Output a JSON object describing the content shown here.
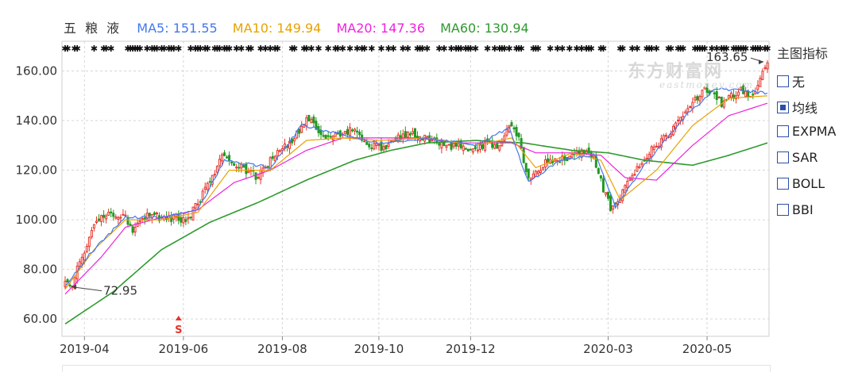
{
  "stock": {
    "name": "五 粮 液"
  },
  "ma_legend": [
    {
      "label": "MA5: 151.55",
      "color": "#4477ee"
    },
    {
      "label": "MA10: 149.94",
      "color": "#e8a200"
    },
    {
      "label": "MA20: 147.36",
      "color": "#ee22dd"
    },
    {
      "label": "MA60: 130.94",
      "color": "#2e9a2e"
    }
  ],
  "side_panel": {
    "title": "主图指标",
    "options": [
      {
        "label": "无",
        "checked": false
      },
      {
        "label": "均线",
        "checked": true
      },
      {
        "label": "EXPMA",
        "checked": false
      },
      {
        "label": "SAR",
        "checked": false
      },
      {
        "label": "BOLL",
        "checked": false
      },
      {
        "label": "BBI",
        "checked": false
      }
    ]
  },
  "watermark": {
    "cn": "东方财富网",
    "en": "eastmoney.com"
  },
  "chart_data": {
    "type": "candlestick",
    "y_ticks": [
      "160.00",
      "140.00",
      "120.00",
      "100.00",
      "80.00",
      "60.00"
    ],
    "ylim": [
      53,
      172
    ],
    "x_ticks": [
      {
        "label": "2019-04",
        "i": 8
      },
      {
        "label": "2019-06",
        "i": 49
      },
      {
        "label": "2019-08",
        "i": 90
      },
      {
        "label": "2019-10",
        "i": 130
      },
      {
        "label": "2019-12",
        "i": 168
      },
      {
        "label": "2020-03",
        "i": 225
      },
      {
        "label": "2020-05",
        "i": 266
      }
    ],
    "n_candles": 292,
    "annotations": [
      {
        "label": "163.65",
        "i": 290,
        "value": 163.65,
        "side": "left"
      },
      {
        "label": "72.95",
        "i": 2,
        "value": 72.95,
        "side": "right"
      }
    ],
    "close_anchors": [
      [
        0,
        74
      ],
      [
        3,
        72
      ],
      [
        5,
        80
      ],
      [
        8,
        85
      ],
      [
        11,
        95
      ],
      [
        14,
        100
      ],
      [
        17,
        103
      ],
      [
        20,
        101
      ],
      [
        25,
        102
      ],
      [
        28,
        94
      ],
      [
        31,
        100
      ],
      [
        35,
        103
      ],
      [
        40,
        100
      ],
      [
        45,
        101
      ],
      [
        50,
        99
      ],
      [
        55,
        107
      ],
      [
        60,
        115
      ],
      [
        65,
        125
      ],
      [
        70,
        122
      ],
      [
        75,
        120
      ],
      [
        80,
        117
      ],
      [
        85,
        124
      ],
      [
        90,
        128
      ],
      [
        95,
        133
      ],
      [
        100,
        141
      ],
      [
        105,
        136
      ],
      [
        110,
        132
      ],
      [
        115,
        136
      ],
      [
        120,
        136
      ],
      [
        125,
        131
      ],
      [
        130,
        129
      ],
      [
        135,
        131
      ],
      [
        140,
        134
      ],
      [
        145,
        134
      ],
      [
        150,
        133
      ],
      [
        155,
        131
      ],
      [
        160,
        130
      ],
      [
        165,
        129
      ],
      [
        170,
        129
      ],
      [
        175,
        131
      ],
      [
        180,
        130
      ],
      [
        184,
        139
      ],
      [
        188,
        133
      ],
      [
        192,
        116
      ],
      [
        196,
        120
      ],
      [
        200,
        124
      ],
      [
        205,
        124
      ],
      [
        210,
        126
      ],
      [
        215,
        128
      ],
      [
        219,
        126
      ],
      [
        223,
        112
      ],
      [
        226,
        105
      ],
      [
        230,
        110
      ],
      [
        235,
        118
      ],
      [
        240,
        125
      ],
      [
        245,
        130
      ],
      [
        250,
        135
      ],
      [
        255,
        140
      ],
      [
        260,
        147
      ],
      [
        265,
        152
      ],
      [
        268,
        151
      ],
      [
        272,
        147
      ],
      [
        276,
        150
      ],
      [
        280,
        152
      ],
      [
        285,
        150
      ],
      [
        289,
        159
      ],
      [
        291,
        163
      ]
    ],
    "ma_anchors": {
      "MA60": [
        [
          0,
          58
        ],
        [
          20,
          71
        ],
        [
          40,
          88
        ],
        [
          60,
          99
        ],
        [
          80,
          107
        ],
        [
          100,
          116
        ],
        [
          120,
          124
        ],
        [
          135,
          128
        ],
        [
          150,
          131
        ],
        [
          170,
          132
        ],
        [
          190,
          131
        ],
        [
          210,
          128
        ],
        [
          225,
          127
        ],
        [
          240,
          124
        ],
        [
          260,
          122
        ],
        [
          275,
          126
        ],
        [
          291,
          131
        ]
      ],
      "MA20": [
        [
          0,
          70
        ],
        [
          15,
          85
        ],
        [
          25,
          97
        ],
        [
          40,
          101
        ],
        [
          55,
          104
        ],
        [
          70,
          115
        ],
        [
          85,
          120
        ],
        [
          100,
          128
        ],
        [
          115,
          133
        ],
        [
          130,
          133
        ],
        [
          145,
          133
        ],
        [
          165,
          131
        ],
        [
          185,
          131
        ],
        [
          195,
          127
        ],
        [
          210,
          127
        ],
        [
          222,
          126
        ],
        [
          232,
          117
        ],
        [
          245,
          116
        ],
        [
          260,
          130
        ],
        [
          275,
          142
        ],
        [
          291,
          147
        ]
      ],
      "MA10": [
        [
          0,
          72
        ],
        [
          12,
          88
        ],
        [
          25,
          100
        ],
        [
          40,
          100
        ],
        [
          55,
          103
        ],
        [
          68,
          120
        ],
        [
          85,
          120
        ],
        [
          100,
          132
        ],
        [
          115,
          133
        ],
        [
          130,
          132
        ],
        [
          150,
          133
        ],
        [
          170,
          130
        ],
        [
          185,
          133
        ],
        [
          195,
          121
        ],
        [
          210,
          127
        ],
        [
          222,
          124
        ],
        [
          230,
          108
        ],
        [
          245,
          120
        ],
        [
          260,
          138
        ],
        [
          275,
          149
        ],
        [
          291,
          150
        ]
      ],
      "MA5": [
        [
          0,
          73
        ],
        [
          10,
          86
        ],
        [
          25,
          101
        ],
        [
          40,
          101
        ],
        [
          55,
          104
        ],
        [
          66,
          124
        ],
        [
          85,
          121
        ],
        [
          98,
          138
        ],
        [
          112,
          135
        ],
        [
          130,
          131
        ],
        [
          150,
          133
        ],
        [
          170,
          130
        ],
        [
          184,
          137
        ],
        [
          192,
          115
        ],
        [
          205,
          124
        ],
        [
          220,
          126
        ],
        [
          228,
          105
        ],
        [
          240,
          122
        ],
        [
          258,
          143
        ],
        [
          270,
          153
        ],
        [
          291,
          151
        ]
      ]
    }
  }
}
